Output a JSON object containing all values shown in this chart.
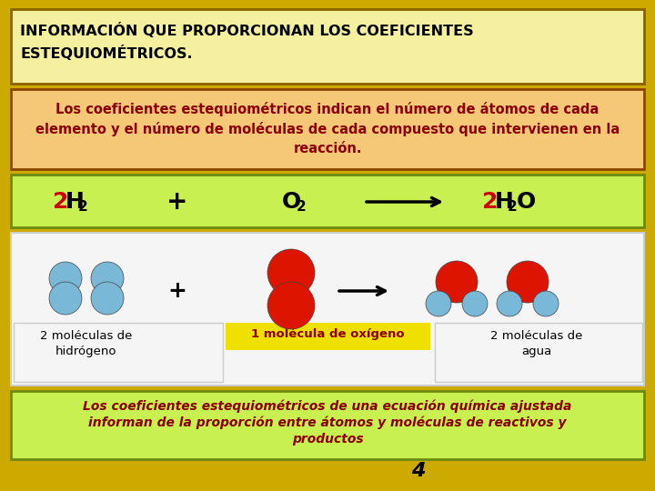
{
  "bg_color": "#ccaa00",
  "title_box_color": "#f5f0a0",
  "title_box_border": "#8B6000",
  "title_text_line1": "INFORMACIÓN QUE PROPORCIONAN LOS COEFICIENTES",
  "title_text_line2": "ESTEQUIOMÉTRICOS.",
  "title_text_color": "#000000",
  "desc_box_color": "#f5c878",
  "desc_box_border": "#8B4500",
  "desc_text": "Los coeficientes estequiométricos indican el número de átomos de cada\nelemento y el número de moléculas de cada compuesto que intervienen en la\nreacción.",
  "desc_text_color": "#8B0000",
  "equation_box_color": "#c8f050",
  "equation_box_border": "#6a8a10",
  "molecule_box_color": "#f5f5f5",
  "molecule_box_border": "#cccccc",
  "bottom_box_color": "#c8f050",
  "bottom_box_border": "#6a8a10",
  "bottom_text_line1": "Los coeficientes estequiométricos de una ecuación química ajustada",
  "bottom_text_line2": "informan de la proporción entre átomos y moléculas de reactivos y",
  "bottom_text_line3": "productos",
  "bottom_text_color": "#8B0000",
  "page_number": "4",
  "page_number_color": "#000000",
  "coeff_color": "#cc0000",
  "atom_H_color": "#7ab8d8",
  "atom_O_color": "#dd1500",
  "yellow_hl_color": "#f0e000"
}
